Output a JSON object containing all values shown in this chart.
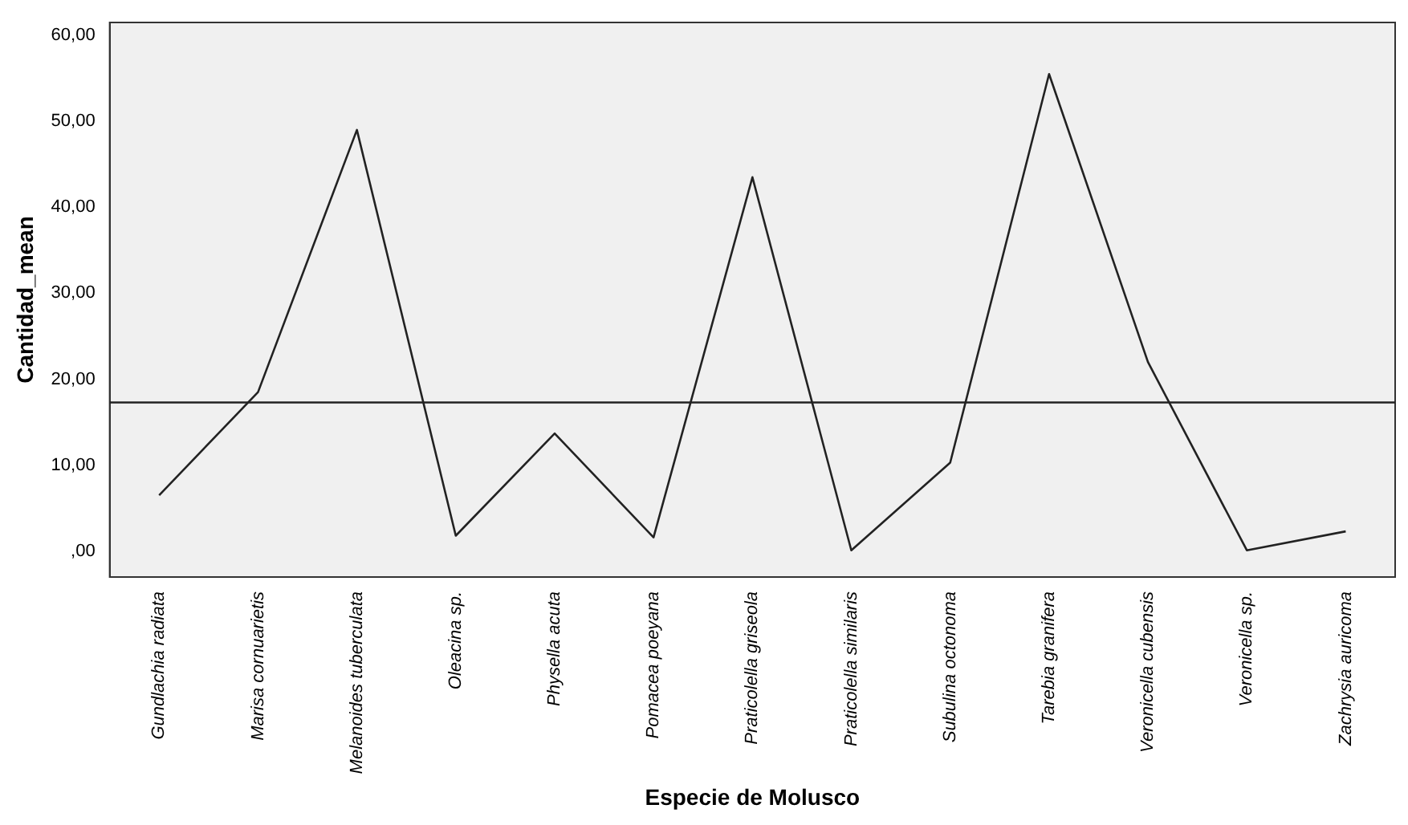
{
  "chart_data": {
    "type": "line",
    "xlabel": "Especie de Molusco",
    "ylabel": "Cantidad_mean",
    "categories": [
      "Gundlachia radiata",
      "Marisa cornuarietis",
      "Melanoides tuberculata",
      "Oleacina sp.",
      "Physella acuta",
      "Pomacea poeyana",
      "Praticolella griseola",
      "Praticolella similaris",
      "Subulina octonoma",
      "Tarebia granifera",
      "Veronicella cubensis",
      "Veronicella sp.",
      "Zachrysia auricoma"
    ],
    "series": [
      {
        "color": "#222222",
        "values": [
          6.5,
          18.5,
          49,
          1.8,
          13.7,
          1.6,
          43.5,
          0.1,
          10.3,
          55.5,
          22,
          0.1,
          2.3
        ]
      }
    ],
    "ylim": [
      -3,
      61.5
    ],
    "yticks": [
      {
        "value": 0,
        "label": ",00"
      },
      {
        "value": 10,
        "label": "10,00"
      },
      {
        "value": 20,
        "label": "20,00"
      },
      {
        "value": 30,
        "label": "30,00"
      },
      {
        "value": 40,
        "label": "40,00"
      },
      {
        "value": 50,
        "label": "50,00"
      },
      {
        "value": 60,
        "label": "60,00"
      }
    ],
    "ref_lines": [
      {
        "axis": "y",
        "value": 17.3,
        "color": "#222222"
      }
    ],
    "grid": false,
    "legend": false,
    "marker": "none",
    "line_style": "solid"
  }
}
